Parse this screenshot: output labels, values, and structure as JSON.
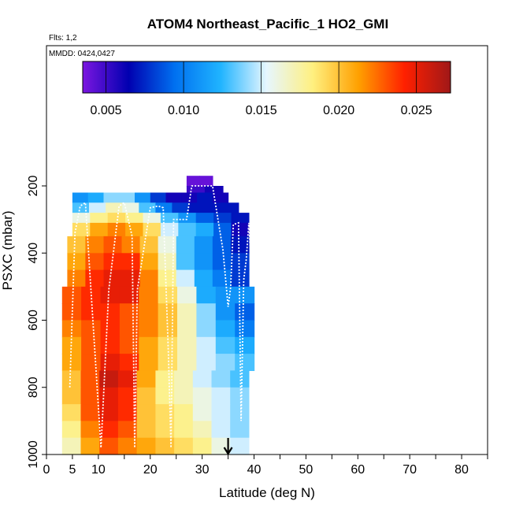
{
  "chart_data": {
    "type": "heatmap",
    "title": "ATOM4 Northeast_Pacific_1 HO2_GMI",
    "flights_label": "Flts: 1,2",
    "dates_label": "MMDD: 0424,0427",
    "xlabel": "Latitude (deg N)",
    "ylabel": "PSXC (mbar)",
    "xlim": [
      0,
      85
    ],
    "ylim": [
      1000,
      0
    ],
    "x_ticks": [
      0,
      5,
      10,
      20,
      30,
      40,
      50,
      60,
      70,
      80
    ],
    "y_ticks": [
      200,
      400,
      600,
      800,
      1000
    ],
    "colorbar": {
      "min": 0.0035,
      "max": 0.0272,
      "ticks": [
        0.005,
        0.01,
        0.015,
        0.02,
        0.025
      ],
      "tick_labels": [
        "0.005",
        "0.010",
        "0.015",
        "0.020",
        "0.025"
      ],
      "colors": [
        "#7b16e0",
        "#0000b0",
        "#0070f0",
        "#20b4ff",
        "#e6f6ff",
        "#fff080",
        "#ffa000",
        "#ff2000",
        "#a01818"
      ]
    },
    "grid": [
      {
        "lat": [
          27,
          32
        ],
        "p": [
          170,
          200
        ],
        "values": [
          0.004,
          0.004
        ]
      },
      {
        "lat": [
          27,
          34
        ],
        "p": [
          200,
          220
        ],
        "values": [
          0.005,
          0.006
        ]
      },
      {
        "lat": [
          5,
          35
        ],
        "p": [
          220,
          250
        ],
        "values": [
          0.011,
          0.012,
          0.014,
          0.014,
          0.011,
          0.008,
          0.006,
          0.006,
          0.007,
          0.006
        ]
      },
      {
        "lat": [
          5,
          37
        ],
        "p": [
          250,
          280
        ],
        "values": [
          0.013,
          0.015,
          0.017,
          0.016,
          0.013,
          0.01,
          0.008,
          0.007,
          0.007,
          0.007
        ]
      },
      {
        "lat": [
          5,
          39
        ],
        "p": [
          280,
          310
        ],
        "values": [
          0.016,
          0.018,
          0.019,
          0.018,
          0.016,
          0.013,
          0.011,
          0.009,
          0.008,
          0.007
        ]
      },
      {
        "lat": [
          5,
          39
        ],
        "p": [
          310,
          350
        ],
        "values": [
          0.019,
          0.021,
          0.022,
          0.021,
          0.019,
          0.015,
          0.013,
          0.012,
          0.009,
          0.006
        ]
      },
      {
        "lat": [
          4,
          39
        ],
        "p": [
          350,
          400
        ],
        "values": [
          0.02,
          0.022,
          0.023,
          0.022,
          0.02,
          0.016,
          0.013,
          0.011,
          0.009,
          0.007
        ]
      },
      {
        "lat": [
          4,
          39
        ],
        "p": [
          400,
          450
        ],
        "values": [
          0.021,
          0.023,
          0.024,
          0.024,
          0.021,
          0.017,
          0.013,
          0.011,
          0.009,
          0.008
        ]
      },
      {
        "lat": [
          4,
          39
        ],
        "p": [
          450,
          500
        ],
        "values": [
          0.022,
          0.024,
          0.025,
          0.025,
          0.022,
          0.018,
          0.015,
          0.012,
          0.01,
          0.008
        ]
      },
      {
        "lat": [
          3,
          40
        ],
        "p": [
          500,
          550
        ],
        "values": [
          0.023,
          0.024,
          0.025,
          0.025,
          0.022,
          0.019,
          0.016,
          0.012,
          0.011,
          0.011
        ]
      },
      {
        "lat": [
          3,
          40
        ],
        "p": [
          550,
          600
        ],
        "values": [
          0.023,
          0.024,
          0.024,
          0.023,
          0.022,
          0.02,
          0.017,
          0.014,
          0.011,
          0.009
        ]
      },
      {
        "lat": [
          3,
          40
        ],
        "p": [
          600,
          650
        ],
        "values": [
          0.022,
          0.023,
          0.024,
          0.023,
          0.022,
          0.02,
          0.017,
          0.014,
          0.012,
          0.01
        ]
      },
      {
        "lat": [
          3,
          40
        ],
        "p": [
          650,
          700
        ],
        "values": [
          0.021,
          0.023,
          0.024,
          0.023,
          0.021,
          0.019,
          0.017,
          0.015,
          0.013,
          0.012
        ]
      },
      {
        "lat": [
          3,
          40
        ],
        "p": [
          700,
          750
        ],
        "values": [
          0.021,
          0.023,
          0.025,
          0.024,
          0.021,
          0.019,
          0.017,
          0.015,
          0.014,
          0.013
        ]
      },
      {
        "lat": [
          3,
          39
        ],
        "p": [
          750,
          800
        ],
        "values": [
          0.02,
          0.023,
          0.026,
          0.025,
          0.021,
          0.018,
          0.017,
          0.015,
          0.014,
          0.013
        ]
      },
      {
        "lat": [
          3,
          39
        ],
        "p": [
          800,
          850
        ],
        "values": [
          0.02,
          0.023,
          0.025,
          0.024,
          0.02,
          0.018,
          0.017,
          0.016,
          0.015,
          0.014
        ]
      },
      {
        "lat": [
          3,
          39
        ],
        "p": [
          850,
          900
        ],
        "values": [
          0.019,
          0.023,
          0.025,
          0.024,
          0.02,
          0.019,
          0.018,
          0.016,
          0.015,
          0.014
        ]
      },
      {
        "lat": [
          3,
          39
        ],
        "p": [
          900,
          950
        ],
        "values": [
          0.018,
          0.022,
          0.024,
          0.023,
          0.02,
          0.019,
          0.018,
          0.017,
          0.015,
          0.014
        ]
      },
      {
        "lat": [
          3,
          39
        ],
        "p": [
          950,
          1000
        ],
        "values": [
          0.017,
          0.021,
          0.023,
          0.022,
          0.021,
          0.02,
          0.019,
          0.018,
          0.016,
          0.015
        ]
      }
    ],
    "flight_track": {
      "lat": [
        4.5,
        5.5,
        6.5,
        7.5,
        10.5,
        12,
        14,
        15,
        16.5,
        17,
        17.5,
        20,
        21.5,
        22.5,
        23.5,
        24,
        24.5,
        27,
        28,
        28.5,
        32,
        34,
        35,
        35.5,
        36,
        37,
        37.5,
        38,
        38.5,
        39,
        39.5
      ],
      "p": [
        800,
        340,
        260,
        250,
        980,
        510,
        260,
        250,
        350,
        980,
        510,
        265,
        260,
        265,
        700,
        980,
        300,
        300,
        200,
        200,
        200,
        390,
        560,
        500,
        315,
        310,
        900,
        480,
        420,
        310,
        450
      ]
    },
    "marker_lat": 35
  }
}
